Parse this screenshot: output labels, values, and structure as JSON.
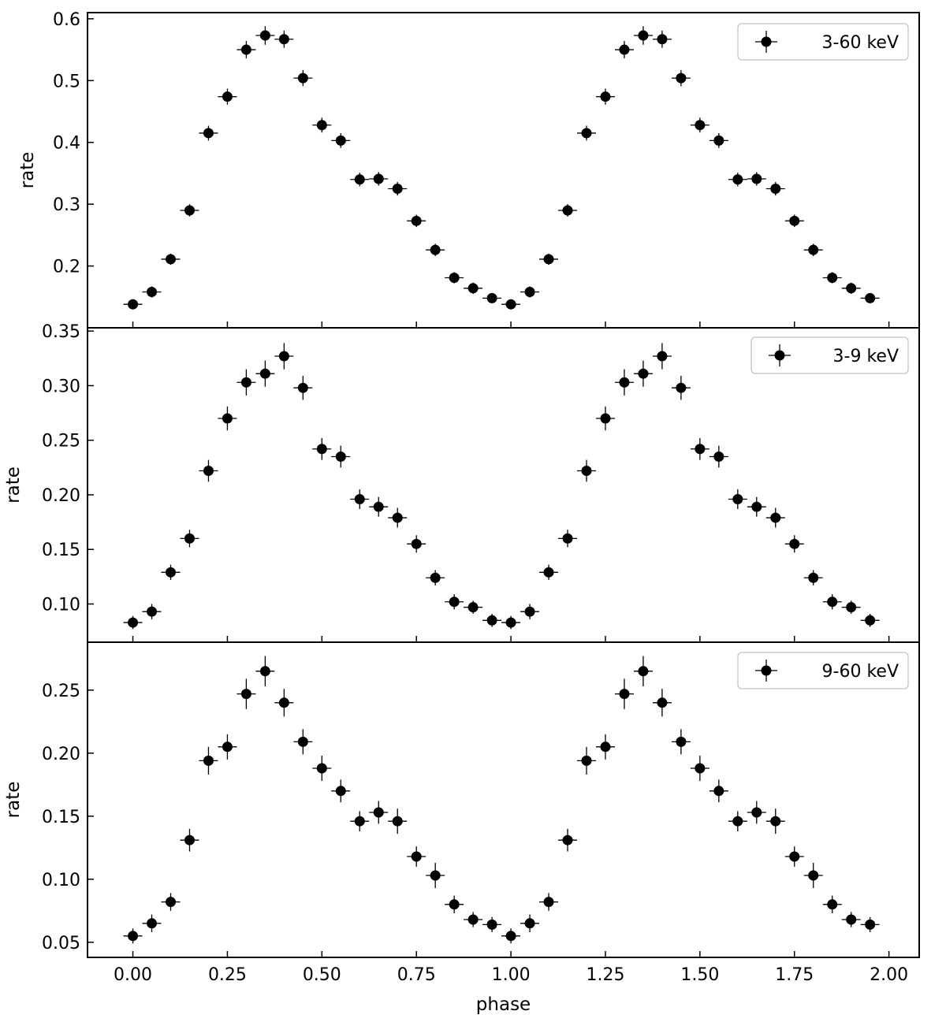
{
  "figure": {
    "xlabel": "phase"
  },
  "chart_data": [
    {
      "type": "scatter",
      "error_bars": true,
      "marker": "filled-circle",
      "color": "#000000",
      "legend": {
        "label": "3-60 keV",
        "location": "upper right"
      },
      "ylabel": "rate",
      "xlabel": "",
      "xlim": [
        -0.12,
        2.08
      ],
      "ylim": [
        0.1,
        0.61
      ],
      "x_ticks": [
        "0.00",
        "0.25",
        "0.50",
        "0.75",
        "1.00",
        "1.25",
        "1.50",
        "1.75",
        "2.00"
      ],
      "y_ticks": [
        "0.2",
        "0.3",
        "0.4",
        "0.5",
        "0.6"
      ],
      "y_tick_values": [
        0.2,
        0.3,
        0.4,
        0.5,
        0.6
      ],
      "x_half_width": 0.025,
      "x": [
        0.0,
        0.05,
        0.1,
        0.15,
        0.2,
        0.25,
        0.3,
        0.35,
        0.4,
        0.45,
        0.5,
        0.55,
        0.6,
        0.65,
        0.7,
        0.75,
        0.8,
        0.85,
        0.9,
        0.95,
        1.0,
        1.05,
        1.1,
        1.15,
        1.2,
        1.25,
        1.3,
        1.35,
        1.4,
        1.45,
        1.5,
        1.55,
        1.6,
        1.65,
        1.7,
        1.75,
        1.8,
        1.85,
        1.9,
        1.95
      ],
      "y": [
        0.138,
        0.158,
        0.211,
        0.29,
        0.415,
        0.474,
        0.55,
        0.573,
        0.567,
        0.504,
        0.428,
        0.403,
        0.34,
        0.341,
        0.325,
        0.273,
        0.226,
        0.181,
        0.164,
        0.148,
        0.138,
        0.158,
        0.211,
        0.29,
        0.415,
        0.474,
        0.55,
        0.573,
        0.567,
        0.504,
        0.428,
        0.403,
        0.34,
        0.341,
        0.325,
        0.273,
        0.226,
        0.181,
        0.164,
        0.148
      ],
      "y_err": [
        0.008,
        0.009,
        0.009,
        0.01,
        0.012,
        0.013,
        0.014,
        0.015,
        0.014,
        0.013,
        0.012,
        0.012,
        0.011,
        0.011,
        0.011,
        0.01,
        0.01,
        0.009,
        0.009,
        0.008,
        0.008,
        0.009,
        0.009,
        0.01,
        0.012,
        0.013,
        0.014,
        0.015,
        0.014,
        0.013,
        0.012,
        0.012,
        0.011,
        0.011,
        0.011,
        0.01,
        0.01,
        0.009,
        0.009,
        0.008
      ]
    },
    {
      "type": "scatter",
      "error_bars": true,
      "marker": "filled-circle",
      "color": "#000000",
      "legend": {
        "label": "3-9 keV",
        "location": "upper right"
      },
      "ylabel": "rate",
      "xlabel": "",
      "xlim": [
        -0.12,
        2.08
      ],
      "ylim": [
        0.065,
        0.353
      ],
      "x_ticks": [
        "0.00",
        "0.25",
        "0.50",
        "0.75",
        "1.00",
        "1.25",
        "1.50",
        "1.75",
        "2.00"
      ],
      "y_ticks": [
        "0.10",
        "0.15",
        "0.20",
        "0.25",
        "0.30",
        "0.35"
      ],
      "y_tick_values": [
        0.1,
        0.15,
        0.2,
        0.25,
        0.3,
        0.35
      ],
      "x_half_width": 0.025,
      "x": [
        0.0,
        0.05,
        0.1,
        0.15,
        0.2,
        0.25,
        0.3,
        0.35,
        0.4,
        0.45,
        0.5,
        0.55,
        0.6,
        0.65,
        0.7,
        0.75,
        0.8,
        0.85,
        0.9,
        0.95,
        1.0,
        1.05,
        1.1,
        1.15,
        1.2,
        1.25,
        1.3,
        1.35,
        1.4,
        1.45,
        1.5,
        1.55,
        1.6,
        1.65,
        1.7,
        1.75,
        1.8,
        1.85,
        1.9,
        1.95
      ],
      "y": [
        0.083,
        0.093,
        0.129,
        0.16,
        0.222,
        0.27,
        0.303,
        0.311,
        0.327,
        0.298,
        0.242,
        0.235,
        0.196,
        0.189,
        0.179,
        0.155,
        0.124,
        0.102,
        0.097,
        0.085,
        0.083,
        0.093,
        0.129,
        0.16,
        0.222,
        0.27,
        0.303,
        0.311,
        0.327,
        0.298,
        0.242,
        0.235,
        0.196,
        0.189,
        0.179,
        0.155,
        0.124,
        0.102,
        0.097,
        0.085
      ],
      "y_err": [
        0.006,
        0.007,
        0.007,
        0.008,
        0.01,
        0.011,
        0.012,
        0.012,
        0.012,
        0.011,
        0.01,
        0.01,
        0.009,
        0.009,
        0.009,
        0.008,
        0.007,
        0.007,
        0.006,
        0.006,
        0.006,
        0.007,
        0.007,
        0.008,
        0.01,
        0.011,
        0.012,
        0.012,
        0.012,
        0.011,
        0.01,
        0.01,
        0.009,
        0.009,
        0.009,
        0.008,
        0.007,
        0.007,
        0.006,
        0.006
      ]
    },
    {
      "type": "scatter",
      "error_bars": true,
      "marker": "filled-circle",
      "color": "#000000",
      "legend": {
        "label": "9-60 keV",
        "location": "upper right"
      },
      "ylabel": "rate",
      "xlabel": "phase",
      "xlim": [
        -0.12,
        2.08
      ],
      "ylim": [
        0.038,
        0.288
      ],
      "x_ticks": [
        "0.00",
        "0.25",
        "0.50",
        "0.75",
        "1.00",
        "1.25",
        "1.50",
        "1.75",
        "2.00"
      ],
      "y_ticks": [
        "0.05",
        "0.10",
        "0.15",
        "0.20",
        "0.25"
      ],
      "y_tick_values": [
        0.05,
        0.1,
        0.15,
        0.2,
        0.25
      ],
      "x_half_width": 0.025,
      "x": [
        0.0,
        0.05,
        0.1,
        0.15,
        0.2,
        0.25,
        0.3,
        0.35,
        0.4,
        0.45,
        0.5,
        0.55,
        0.6,
        0.65,
        0.7,
        0.75,
        0.8,
        0.85,
        0.9,
        0.95,
        1.0,
        1.05,
        1.1,
        1.15,
        1.2,
        1.25,
        1.3,
        1.35,
        1.4,
        1.45,
        1.5,
        1.55,
        1.6,
        1.65,
        1.7,
        1.75,
        1.8,
        1.85,
        1.9,
        1.95
      ],
      "y": [
        0.055,
        0.065,
        0.082,
        0.131,
        0.194,
        0.205,
        0.247,
        0.265,
        0.24,
        0.209,
        0.188,
        0.17,
        0.146,
        0.153,
        0.146,
        0.118,
        0.103,
        0.08,
        0.068,
        0.064,
        0.055,
        0.065,
        0.082,
        0.131,
        0.194,
        0.205,
        0.247,
        0.265,
        0.24,
        0.209,
        0.188,
        0.17,
        0.146,
        0.153,
        0.146,
        0.118,
        0.103,
        0.08,
        0.068,
        0.064
      ],
      "y_err": [
        0.006,
        0.007,
        0.007,
        0.009,
        0.011,
        0.01,
        0.012,
        0.012,
        0.011,
        0.01,
        0.01,
        0.009,
        0.008,
        0.009,
        0.01,
        0.008,
        0.01,
        0.007,
        0.006,
        0.006,
        0.006,
        0.007,
        0.007,
        0.009,
        0.011,
        0.01,
        0.012,
        0.012,
        0.011,
        0.01,
        0.01,
        0.009,
        0.008,
        0.009,
        0.01,
        0.008,
        0.01,
        0.007,
        0.006,
        0.006
      ]
    }
  ]
}
